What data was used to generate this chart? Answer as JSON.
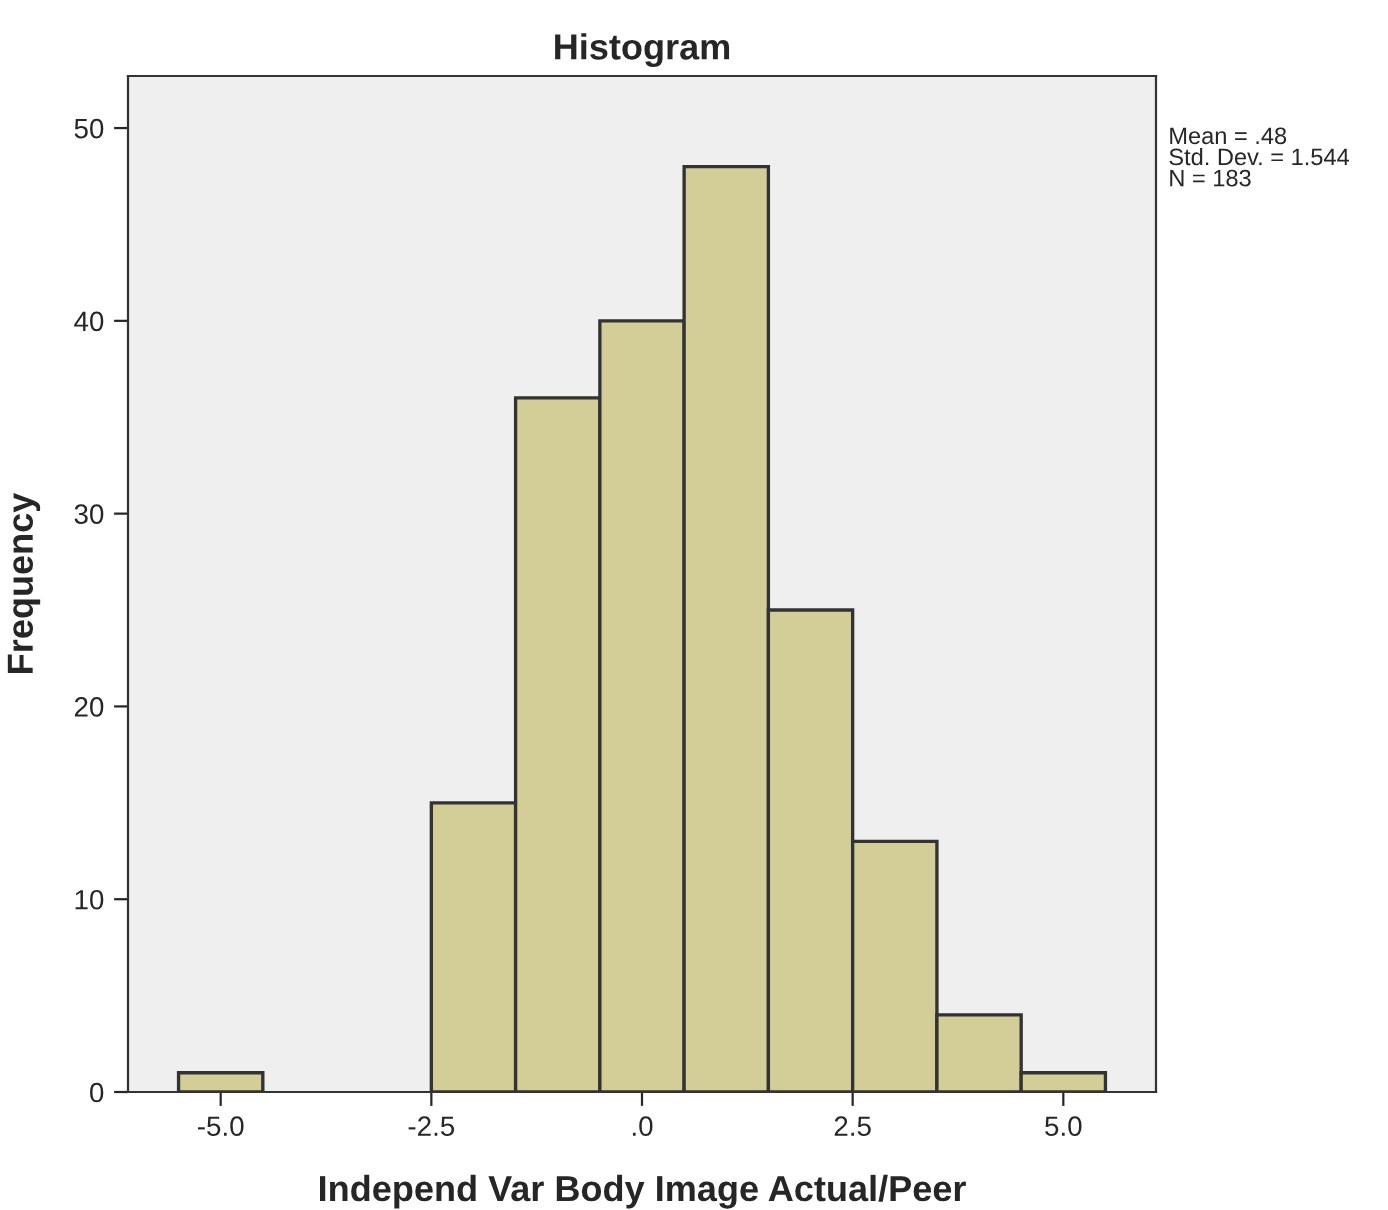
{
  "chart_data": {
    "type": "histogram",
    "title": "Histogram",
    "xlabel": "Independ Var Body Image Actual/Peer",
    "ylabel": "Frequency",
    "bins": [
      -5.5,
      -4.5,
      -3.5,
      -2.5,
      -1.5,
      -0.5,
      0.5,
      1.5,
      2.5,
      3.5,
      4.5,
      5.5
    ],
    "values": [
      1,
      0,
      0,
      15,
      36,
      40,
      48,
      25,
      13,
      4,
      1
    ],
    "color": "#d3ce97",
    "xlim": [
      -6.1,
      6.1
    ],
    "ylim": [
      0,
      52.7
    ],
    "xticks": [
      {
        "value": -5,
        "label": "-5.0"
      },
      {
        "value": -2.5,
        "label": "-2.5"
      },
      {
        "value": 0,
        "label": ".0"
      },
      {
        "value": 2.5,
        "label": "2.5"
      },
      {
        "value": 5,
        "label": "5.0"
      }
    ],
    "yticks": [
      0,
      10,
      20,
      30,
      40,
      50
    ],
    "grid": false,
    "annotations": [
      "Mean = .48\nStd. Dev. = 1.544\nN = 183"
    ]
  }
}
